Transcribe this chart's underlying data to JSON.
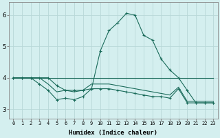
{
  "title": "",
  "xlabel": "Humidex (Indice chaleur)",
  "ylabel": "",
  "bg_color": "#d4efef",
  "line_color": "#1a6b5a",
  "grid_color": "#b8d8d8",
  "xlim": [
    -0.5,
    23.5
  ],
  "ylim": [
    2.7,
    6.4
  ],
  "yticks": [
    3,
    4,
    5,
    6
  ],
  "xticks": [
    0,
    1,
    2,
    3,
    4,
    5,
    6,
    7,
    8,
    9,
    10,
    11,
    12,
    13,
    14,
    15,
    16,
    17,
    18,
    19,
    20,
    21,
    22,
    23
  ],
  "line1_x": [
    0,
    1,
    2,
    3,
    4,
    5,
    6,
    7,
    8,
    9,
    10,
    11,
    12,
    13,
    14,
    15,
    16,
    17,
    18,
    19,
    20,
    21,
    22,
    23
  ],
  "line1_y": [
    4.0,
    4.0,
    4.0,
    4.0,
    4.0,
    4.0,
    4.0,
    4.0,
    4.0,
    4.0,
    4.0,
    4.0,
    4.0,
    4.0,
    4.0,
    4.0,
    4.0,
    4.0,
    4.0,
    4.0,
    4.0,
    4.0,
    4.0,
    4.0
  ],
  "line2_x": [
    0,
    1,
    2,
    3,
    4,
    5,
    6,
    7,
    8,
    9,
    10,
    11,
    12,
    13,
    14,
    15,
    16,
    17,
    18,
    19,
    20,
    21,
    22,
    23
  ],
  "line2_y": [
    4.0,
    4.0,
    4.0,
    3.8,
    3.6,
    3.3,
    3.35,
    3.3,
    3.4,
    3.65,
    3.65,
    3.65,
    3.6,
    3.55,
    3.5,
    3.45,
    3.4,
    3.4,
    3.35,
    3.65,
    3.2,
    3.2,
    3.2,
    3.2
  ],
  "line3_x": [
    0,
    1,
    2,
    3,
    4,
    5,
    6,
    7,
    8,
    9,
    10,
    11,
    12,
    13,
    14,
    15,
    16,
    17,
    18,
    19,
    20,
    21,
    22,
    23
  ],
  "line3_y": [
    4.0,
    4.0,
    4.0,
    4.0,
    3.8,
    3.55,
    3.6,
    3.55,
    3.6,
    3.8,
    3.8,
    3.8,
    3.75,
    3.7,
    3.65,
    3.6,
    3.55,
    3.5,
    3.45,
    3.7,
    3.25,
    3.25,
    3.25,
    3.25
  ],
  "line4_x": [
    0,
    1,
    2,
    3,
    4,
    5,
    6,
    7,
    8,
    9,
    10,
    11,
    12,
    13,
    14,
    15,
    16,
    17,
    18,
    19,
    20,
    21,
    22,
    23
  ],
  "line4_y": [
    4.0,
    4.0,
    4.0,
    4.0,
    4.0,
    3.75,
    3.6,
    3.6,
    3.6,
    3.65,
    4.85,
    5.5,
    5.75,
    6.05,
    6.0,
    5.35,
    5.2,
    4.6,
    4.25,
    4.0,
    3.6,
    3.2,
    3.2,
    3.2
  ]
}
